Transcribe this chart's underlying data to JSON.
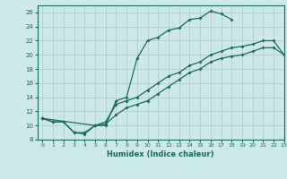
{
  "xlabel": "Humidex (Indice chaleur)",
  "bg_color": "#cce8e8",
  "line_color": "#1a6b5a",
  "grid_color": "#aacccc",
  "xlim": [
    -0.5,
    23
  ],
  "ylim": [
    8,
    27
  ],
  "xticks": [
    0,
    1,
    2,
    3,
    4,
    5,
    6,
    7,
    8,
    9,
    10,
    11,
    12,
    13,
    14,
    15,
    16,
    17,
    18,
    19,
    20,
    21,
    22,
    23
  ],
  "yticks": [
    8,
    10,
    12,
    14,
    16,
    18,
    20,
    22,
    24,
    26
  ],
  "line1_x": [
    0,
    1,
    2,
    3,
    4,
    5,
    6,
    7,
    8,
    9,
    10,
    11,
    12,
    13,
    14,
    15,
    16,
    17,
    18
  ],
  "line1_y": [
    11,
    10.5,
    10.5,
    9,
    9,
    10,
    10,
    13.5,
    14,
    19.5,
    22,
    22.5,
    23.5,
    23.8,
    25,
    25.2,
    26.2,
    25.8,
    25
  ],
  "line2_x": [
    0,
    1,
    2,
    3,
    4,
    5,
    6,
    7,
    8,
    9,
    10,
    11,
    12,
    13,
    14,
    15,
    16,
    17,
    18,
    19,
    20,
    21,
    22,
    23
  ],
  "line2_y": [
    11,
    10.5,
    10.5,
    9,
    8.8,
    10,
    10.2,
    11.5,
    12.5,
    13,
    13.5,
    14.5,
    15.5,
    16.5,
    17.5,
    18,
    19,
    19.5,
    19.8,
    20,
    20.5,
    21,
    21,
    20
  ],
  "line3_x": [
    0,
    5,
    6,
    7,
    8,
    9,
    10,
    11,
    12,
    13,
    14,
    15,
    16,
    17,
    18,
    19,
    20,
    21,
    22,
    23
  ],
  "line3_y": [
    11,
    10,
    10.5,
    13,
    13.5,
    14,
    15,
    16,
    17,
    17.5,
    18.5,
    19,
    20,
    20.5,
    21,
    21.2,
    21.5,
    22,
    22,
    20
  ]
}
